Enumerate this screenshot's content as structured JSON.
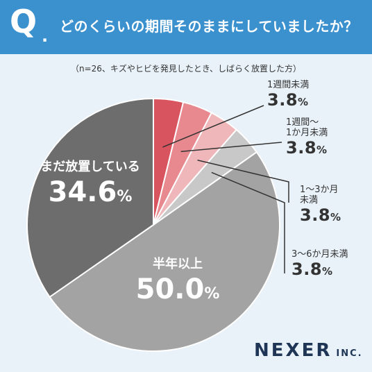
{
  "header": {
    "q_mark": "Q",
    "q_dot": ".",
    "question": "どのくらいの期間そのままにしていましたか？"
  },
  "note": "（n=26、キズやヒビを発見したとき、しばらく放置した方）",
  "chart_data": {
    "type": "pie",
    "start": "top",
    "direction": "clockwise",
    "slices": [
      {
        "label": "1週間未満",
        "label_lines": [
          "1週間未満"
        ],
        "value": 3.8,
        "color": "#d8545f"
      },
      {
        "label": "1週間〜1か月未満",
        "label_lines": [
          "1週間〜",
          "1か月未満"
        ],
        "value": 3.8,
        "color": "#e88990"
      },
      {
        "label": "1〜3か月未満",
        "label_lines": [
          "1〜3か月",
          "未満"
        ],
        "value": 3.8,
        "color": "#efb7ba"
      },
      {
        "label": "3〜6か月未満",
        "label_lines": [
          "3〜6か月未満"
        ],
        "value": 3.8,
        "color": "#c8c8c8"
      },
      {
        "label": "半年以上",
        "label_lines": [
          "半年以上"
        ],
        "value": 50.0,
        "color": "#a3a3a3"
      },
      {
        "label": "まだ放置している",
        "label_lines": [
          "まだ放置している"
        ],
        "value": 34.6,
        "color": "#6d6d6d"
      }
    ],
    "value_display": [
      "3.8",
      "3.8",
      "3.8",
      "3.8",
      "50.0",
      "34.6"
    ],
    "unit": "%"
  },
  "brand": {
    "name": "NEXER",
    "suffix": "INC."
  }
}
